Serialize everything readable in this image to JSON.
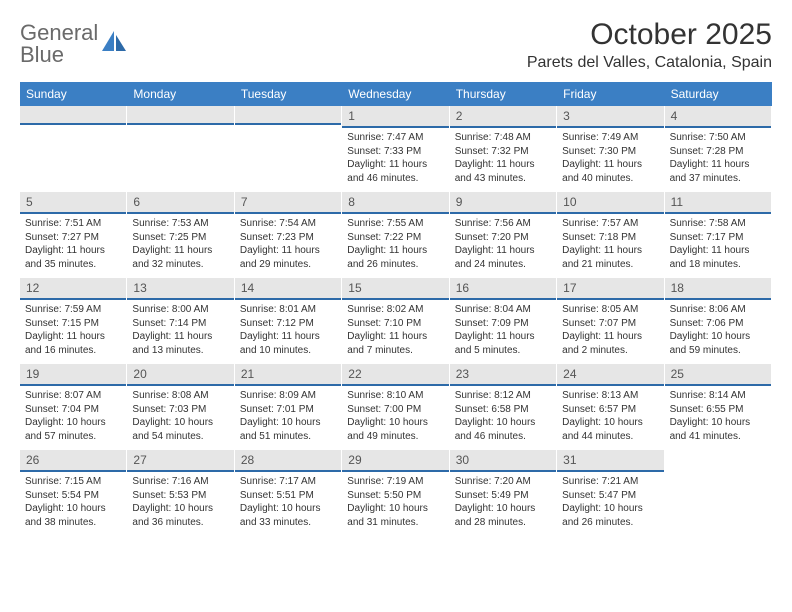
{
  "colors": {
    "header_bg": "#3b7fc4",
    "daynum_bg": "#e6e6e6",
    "daynum_border": "#2d6aa8",
    "text": "#333333",
    "logo_gray": "#6a6a6a",
    "logo_blue": "#3b7fc4"
  },
  "logo": {
    "line1": "General",
    "line2": "Blue"
  },
  "title": "October 2025",
  "location": "Parets del Valles, Catalonia, Spain",
  "weekdays": [
    "Sunday",
    "Monday",
    "Tuesday",
    "Wednesday",
    "Thursday",
    "Friday",
    "Saturday"
  ],
  "weeks": [
    [
      {
        "empty": true
      },
      {
        "empty": true
      },
      {
        "empty": true
      },
      {
        "n": "1",
        "sr": "7:47 AM",
        "ss": "7:33 PM",
        "dl": "11 hours and 46 minutes."
      },
      {
        "n": "2",
        "sr": "7:48 AM",
        "ss": "7:32 PM",
        "dl": "11 hours and 43 minutes."
      },
      {
        "n": "3",
        "sr": "7:49 AM",
        "ss": "7:30 PM",
        "dl": "11 hours and 40 minutes."
      },
      {
        "n": "4",
        "sr": "7:50 AM",
        "ss": "7:28 PM",
        "dl": "11 hours and 37 minutes."
      }
    ],
    [
      {
        "n": "5",
        "sr": "7:51 AM",
        "ss": "7:27 PM",
        "dl": "11 hours and 35 minutes."
      },
      {
        "n": "6",
        "sr": "7:53 AM",
        "ss": "7:25 PM",
        "dl": "11 hours and 32 minutes."
      },
      {
        "n": "7",
        "sr": "7:54 AM",
        "ss": "7:23 PM",
        "dl": "11 hours and 29 minutes."
      },
      {
        "n": "8",
        "sr": "7:55 AM",
        "ss": "7:22 PM",
        "dl": "11 hours and 26 minutes."
      },
      {
        "n": "9",
        "sr": "7:56 AM",
        "ss": "7:20 PM",
        "dl": "11 hours and 24 minutes."
      },
      {
        "n": "10",
        "sr": "7:57 AM",
        "ss": "7:18 PM",
        "dl": "11 hours and 21 minutes."
      },
      {
        "n": "11",
        "sr": "7:58 AM",
        "ss": "7:17 PM",
        "dl": "11 hours and 18 minutes."
      }
    ],
    [
      {
        "n": "12",
        "sr": "7:59 AM",
        "ss": "7:15 PM",
        "dl": "11 hours and 16 minutes."
      },
      {
        "n": "13",
        "sr": "8:00 AM",
        "ss": "7:14 PM",
        "dl": "11 hours and 13 minutes."
      },
      {
        "n": "14",
        "sr": "8:01 AM",
        "ss": "7:12 PM",
        "dl": "11 hours and 10 minutes."
      },
      {
        "n": "15",
        "sr": "8:02 AM",
        "ss": "7:10 PM",
        "dl": "11 hours and 7 minutes."
      },
      {
        "n": "16",
        "sr": "8:04 AM",
        "ss": "7:09 PM",
        "dl": "11 hours and 5 minutes."
      },
      {
        "n": "17",
        "sr": "8:05 AM",
        "ss": "7:07 PM",
        "dl": "11 hours and 2 minutes."
      },
      {
        "n": "18",
        "sr": "8:06 AM",
        "ss": "7:06 PM",
        "dl": "10 hours and 59 minutes."
      }
    ],
    [
      {
        "n": "19",
        "sr": "8:07 AM",
        "ss": "7:04 PM",
        "dl": "10 hours and 57 minutes."
      },
      {
        "n": "20",
        "sr": "8:08 AM",
        "ss": "7:03 PM",
        "dl": "10 hours and 54 minutes."
      },
      {
        "n": "21",
        "sr": "8:09 AM",
        "ss": "7:01 PM",
        "dl": "10 hours and 51 minutes."
      },
      {
        "n": "22",
        "sr": "8:10 AM",
        "ss": "7:00 PM",
        "dl": "10 hours and 49 minutes."
      },
      {
        "n": "23",
        "sr": "8:12 AM",
        "ss": "6:58 PM",
        "dl": "10 hours and 46 minutes."
      },
      {
        "n": "24",
        "sr": "8:13 AM",
        "ss": "6:57 PM",
        "dl": "10 hours and 44 minutes."
      },
      {
        "n": "25",
        "sr": "8:14 AM",
        "ss": "6:55 PM",
        "dl": "10 hours and 41 minutes."
      }
    ],
    [
      {
        "n": "26",
        "sr": "7:15 AM",
        "ss": "5:54 PM",
        "dl": "10 hours and 38 minutes."
      },
      {
        "n": "27",
        "sr": "7:16 AM",
        "ss": "5:53 PM",
        "dl": "10 hours and 36 minutes."
      },
      {
        "n": "28",
        "sr": "7:17 AM",
        "ss": "5:51 PM",
        "dl": "10 hours and 33 minutes."
      },
      {
        "n": "29",
        "sr": "7:19 AM",
        "ss": "5:50 PM",
        "dl": "10 hours and 31 minutes."
      },
      {
        "n": "30",
        "sr": "7:20 AM",
        "ss": "5:49 PM",
        "dl": "10 hours and 28 minutes."
      },
      {
        "n": "31",
        "sr": "7:21 AM",
        "ss": "5:47 PM",
        "dl": "10 hours and 26 minutes."
      },
      {
        "empty": true,
        "trailing": true
      }
    ]
  ],
  "labels": {
    "sunrise": "Sunrise:",
    "sunset": "Sunset:",
    "daylight": "Daylight:"
  }
}
